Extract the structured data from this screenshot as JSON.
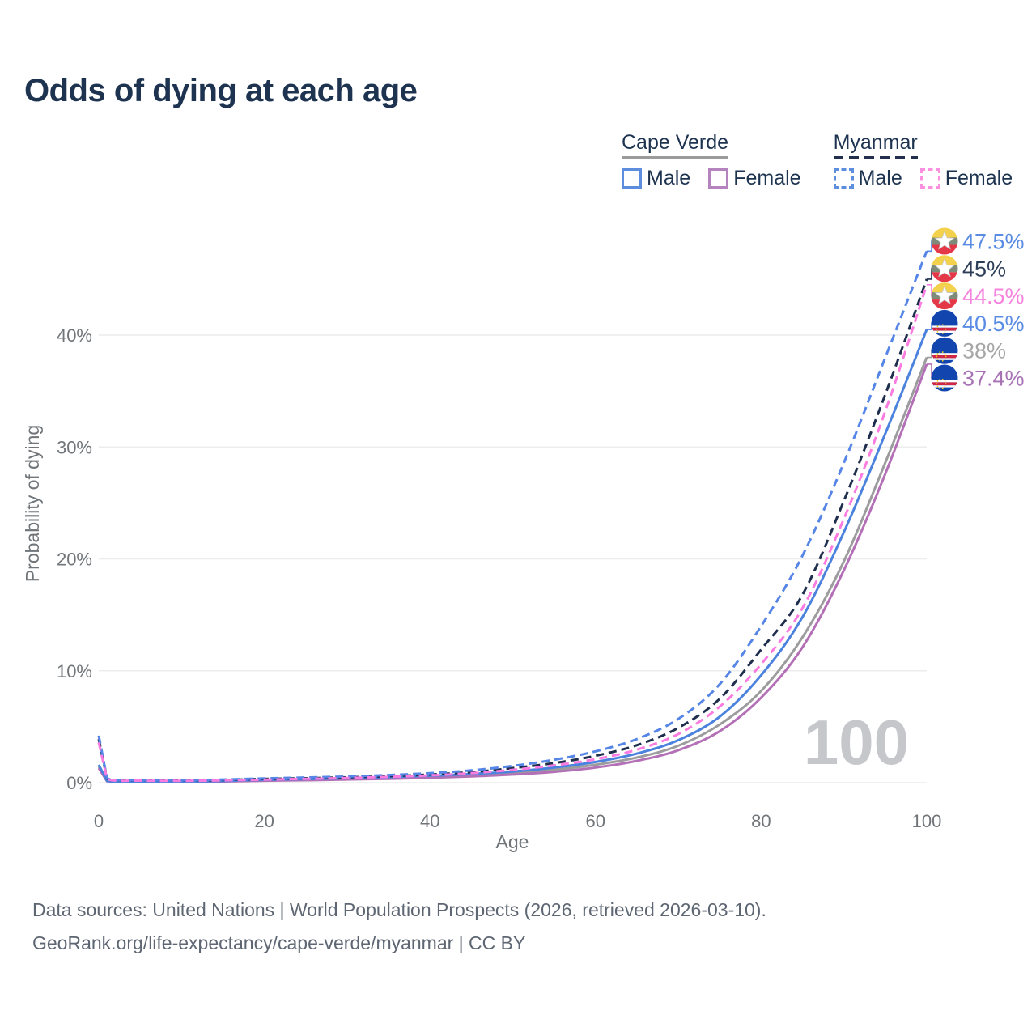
{
  "title": "Odds of dying at each age",
  "legend": {
    "groups": [
      {
        "id": "cape-verde",
        "label": "Cape Verde",
        "line_style": "solid",
        "underline_color": "#9b9b9b",
        "items": [
          {
            "id": "male",
            "label": "Male",
            "color": "#5d8ddd",
            "dashed": false
          },
          {
            "id": "female",
            "label": "Female",
            "color": "#b583bd",
            "dashed": false
          }
        ]
      },
      {
        "id": "myanmar",
        "label": "Myanmar",
        "line_style": "dashed",
        "underline_color": "#22304d",
        "items": [
          {
            "id": "male",
            "label": "Male",
            "color": "#5d8ddd",
            "dashed": true
          },
          {
            "id": "female",
            "label": "Female",
            "color": "#fb8fe0",
            "dashed": true
          }
        ]
      }
    ]
  },
  "flags": {
    "myanmar": {
      "yellow": "#F4D14D",
      "green": "#7E8B79",
      "red": "#E43748",
      "star": "#FFFFFF",
      "star_outline": "#C9CDD2"
    },
    "cape_verde": {
      "blue": "#1245AE",
      "red": "#CF2744",
      "white": "#FFFFFF",
      "star": "#F7D116"
    }
  },
  "chart_data": {
    "type": "line",
    "title": "Odds of dying at each age",
    "xlabel": "Age",
    "ylabel": "Probability of dying",
    "xlim": [
      0,
      100
    ],
    "ylim": [
      0,
      49
    ],
    "grid": true,
    "legend_position": "top-right",
    "watermark": "100",
    "x": [
      0,
      1,
      5,
      10,
      15,
      20,
      25,
      30,
      35,
      40,
      45,
      50,
      55,
      60,
      65,
      70,
      75,
      80,
      85,
      90,
      95,
      100
    ],
    "xticks": [
      0,
      20,
      40,
      60,
      80,
      100
    ],
    "yticks": [
      {
        "value": 0,
        "label": "0%"
      },
      {
        "value": 10,
        "label": "10%"
      },
      {
        "value": 20,
        "label": "20%"
      },
      {
        "value": 30,
        "label": "30%"
      },
      {
        "value": 40,
        "label": "40%"
      }
    ],
    "series": [
      {
        "id": "myanmar-male",
        "name": "Myanmar Male",
        "country": "Myanmar",
        "sex": "Male",
        "color": "#5585e6",
        "dashed": true,
        "flag": "myanmar",
        "end_label": "47.5%",
        "end_label_color": "#5b8ce4",
        "values": [
          4.2,
          0.4,
          0.22,
          0.2,
          0.28,
          0.38,
          0.46,
          0.55,
          0.68,
          0.85,
          1.1,
          1.5,
          2.05,
          2.8,
          3.9,
          5.7,
          8.8,
          14.0,
          20.3,
          28.6,
          38.0,
          47.5
        ]
      },
      {
        "id": "myanmar-both",
        "name": "Myanmar Both sexes",
        "country": "Myanmar",
        "sex": "Both sexes",
        "color": "#1f2e4d",
        "dashed": true,
        "flag": "myanmar",
        "end_label": "45%",
        "end_label_color": "#2d3d58",
        "values": [
          3.9,
          0.36,
          0.2,
          0.18,
          0.24,
          0.33,
          0.4,
          0.48,
          0.58,
          0.73,
          0.95,
          1.3,
          1.75,
          2.4,
          3.35,
          4.9,
          7.5,
          11.9,
          16.8,
          25.2,
          34.7,
          45.0
        ]
      },
      {
        "id": "myanmar-female",
        "name": "Myanmar Female",
        "country": "Myanmar",
        "sex": "Female",
        "color": "#fb7ce0",
        "dashed": true,
        "flag": "myanmar",
        "end_label": "44.5%",
        "end_label_color": "#f583de",
        "values": [
          3.6,
          0.33,
          0.18,
          0.16,
          0.2,
          0.27,
          0.34,
          0.42,
          0.52,
          0.65,
          0.85,
          1.15,
          1.55,
          2.1,
          2.95,
          4.35,
          6.8,
          10.6,
          15.6,
          23.6,
          33.2,
          44.5
        ]
      },
      {
        "id": "cape-verde-male",
        "name": "Cape Verde Male",
        "country": "Cape Verde",
        "sex": "Male",
        "color": "#4a82dd",
        "dashed": false,
        "flag": "cape_verde",
        "end_label": "40.5%",
        "end_label_color": "#5b8ce4",
        "values": [
          1.6,
          0.15,
          0.1,
          0.1,
          0.15,
          0.25,
          0.32,
          0.4,
          0.5,
          0.62,
          0.78,
          1.0,
          1.35,
          1.85,
          2.6,
          3.8,
          5.9,
          9.6,
          14.8,
          22.4,
          31.2,
          40.5
        ]
      },
      {
        "id": "cape-verde-both",
        "name": "Cape Verde Both sexes",
        "country": "Cape Verde",
        "sex": "Both sexes",
        "color": "#9c9c9e",
        "dashed": false,
        "flag": "cape_verde",
        "end_label": "38%",
        "end_label_color": "#a6a6a6",
        "values": [
          1.45,
          0.14,
          0.09,
          0.09,
          0.13,
          0.21,
          0.27,
          0.34,
          0.42,
          0.53,
          0.67,
          0.87,
          1.15,
          1.6,
          2.25,
          3.3,
          5.2,
          8.2,
          13.0,
          19.8,
          28.6,
          38.0
        ]
      },
      {
        "id": "cape-verde-female",
        "name": "Cape Verde Female",
        "country": "Cape Verde",
        "sex": "Female",
        "color": "#b470b6",
        "dashed": false,
        "flag": "cape_verde",
        "end_label": "37.4%",
        "end_label_color": "#a873b5",
        "values": [
          1.3,
          0.13,
          0.08,
          0.08,
          0.11,
          0.17,
          0.22,
          0.28,
          0.35,
          0.44,
          0.56,
          0.73,
          0.97,
          1.35,
          1.95,
          2.9,
          4.6,
          7.6,
          12.1,
          19.0,
          27.6,
          37.4
        ]
      }
    ]
  },
  "footer": {
    "line1": "Data sources: United Nations | World Population Prospects (2026, retrieved 2026-03-10).",
    "line2": "GeoRank.org/life-expectancy/cape-verde/myanmar | CC BY"
  }
}
